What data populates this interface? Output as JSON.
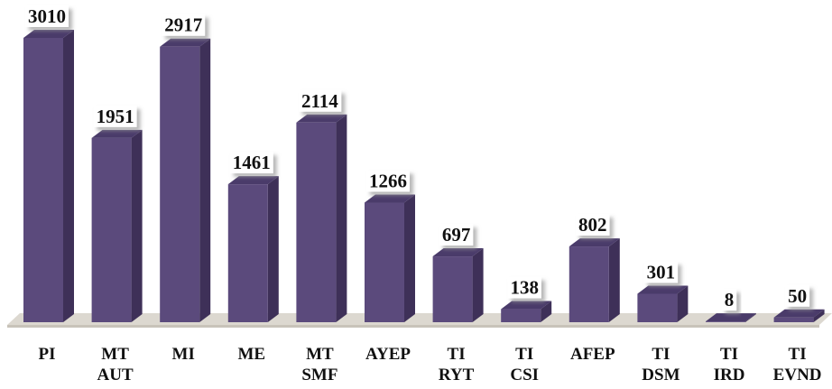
{
  "chart_data": {
    "type": "bar3d",
    "categories": [
      [
        "PI"
      ],
      [
        "MT",
        "AUT"
      ],
      [
        "MI"
      ],
      [
        "ME"
      ],
      [
        "MT",
        "SMF"
      ],
      [
        "AYEP"
      ],
      [
        "TI",
        "RYT"
      ],
      [
        "TI",
        "CSI"
      ],
      [
        "AFEP"
      ],
      [
        "TI",
        "DSM"
      ],
      [
        "TI",
        "IRD"
      ],
      [
        "TI",
        "EVND"
      ]
    ],
    "values": [
      3010,
      1951,
      2917,
      1461,
      2114,
      1266,
      697,
      138,
      802,
      301,
      8,
      50
    ],
    "color": "#5b4a7c"
  }
}
